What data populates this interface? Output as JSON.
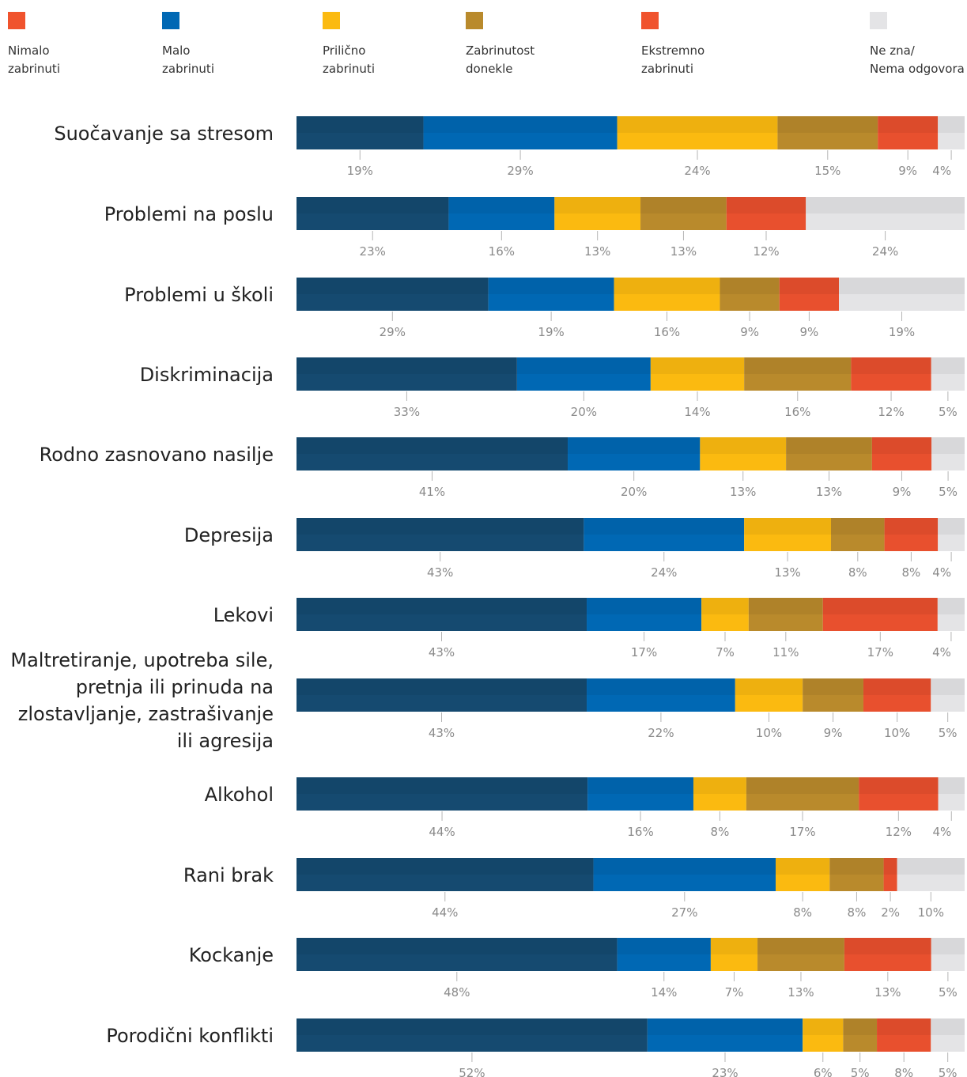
{
  "legend": [
    {
      "label": "Nimalo\nzabrinuti",
      "color": "#F0532D"
    },
    {
      "label": "Malo\nzabrinuti",
      "color": "#0068B4"
    },
    {
      "label": "Prilično\nzabrinuti",
      "color": "#FBBA10"
    },
    {
      "label": "Zabrinutost\ndonekle",
      "color": "#B98A2C"
    },
    {
      "label": "Ekstremno\nzabrinuti",
      "color": "#F0532D"
    },
    {
      "label": "Ne zna/\nNema odgovora",
      "color": "#E4E4E6"
    }
  ],
  "chart_data": {
    "type": "bar",
    "orientation": "horizontal",
    "stacked": true,
    "segment_colors": [
      "#154A70",
      "#0068B4",
      "#FBBA10",
      "#B98A2C",
      "#E8502E",
      "#E4E4E6"
    ],
    "categories": [
      {
        "label": [
          "Suočavanje sa stresom"
        ],
        "values": [
          19,
          29,
          24,
          15,
          9,
          4
        ]
      },
      {
        "label": [
          "Problemi na poslu"
        ],
        "values": [
          23,
          16,
          13,
          13,
          12,
          24
        ]
      },
      {
        "label": [
          "Problemi u školi"
        ],
        "values": [
          29,
          19,
          16,
          9,
          9,
          19
        ]
      },
      {
        "label": [
          "Diskriminacija"
        ],
        "values": [
          33,
          20,
          14,
          16,
          12,
          5
        ]
      },
      {
        "label": [
          "Rodno zasnovano nasilje"
        ],
        "values": [
          41,
          20,
          13,
          13,
          9,
          5
        ]
      },
      {
        "label": [
          "Depresija"
        ],
        "values": [
          43,
          24,
          13,
          8,
          8,
          4
        ]
      },
      {
        "label": [
          "Lekovi"
        ],
        "values": [
          43,
          17,
          7,
          11,
          17,
          4
        ]
      },
      {
        "label": [
          "Maltretiranje, upotreba sile,",
          "pretnja ili prinuda na",
          "zlostavljanje, zastrašivanje",
          "ili agresija"
        ],
        "values": [
          43,
          22,
          10,
          9,
          10,
          5
        ]
      },
      {
        "label": [
          "Alkohol"
        ],
        "values": [
          44,
          16,
          8,
          17,
          12,
          4
        ]
      },
      {
        "label": [
          "Rani brak"
        ],
        "values": [
          44,
          27,
          8,
          8,
          2,
          10
        ]
      },
      {
        "label": [
          "Kockanje"
        ],
        "values": [
          48,
          14,
          7,
          13,
          13,
          5
        ]
      },
      {
        "label": [
          "Porodični konflikti"
        ],
        "values": [
          52,
          23,
          6,
          5,
          8,
          5
        ]
      }
    ],
    "value_suffix": "%"
  }
}
